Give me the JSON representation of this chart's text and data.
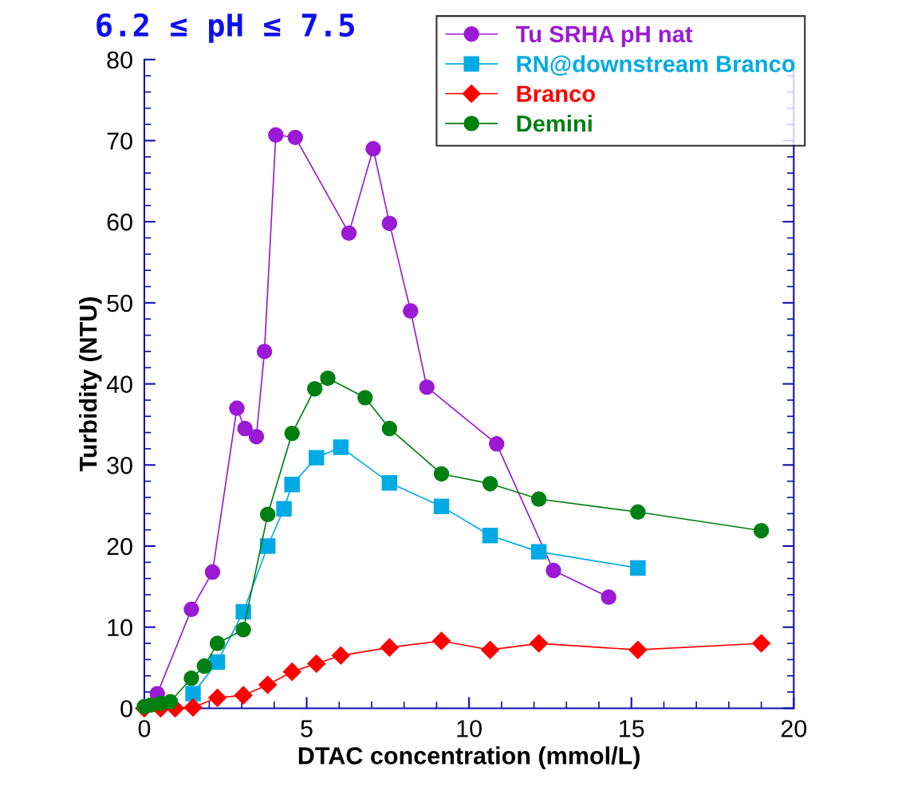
{
  "chart_data": {
    "type": "line",
    "title": "6.2 ≤ pH ≤ 7.5",
    "xlabel": "DTAC concentration (mmol/L)",
    "ylabel": "Turbidity (NTU)",
    "xlim": [
      0,
      20
    ],
    "xticks": [
      0,
      5,
      10,
      15,
      20
    ],
    "ylim": [
      0,
      80
    ],
    "yticks": [
      0,
      10,
      20,
      30,
      40,
      50,
      60,
      70,
      80
    ],
    "grid": false,
    "legend": "top right",
    "series": [
      {
        "name": "Tu SRHA pH nat",
        "color": "#9a1ad6",
        "marker": "circle",
        "x": [
          0.4,
          1.45,
          2.1,
          2.85,
          3.1,
          3.45,
          3.7,
          4.05,
          4.65,
          6.3,
          7.05,
          7.55,
          8.2,
          8.7,
          10.85,
          12.6,
          14.3
        ],
        "values": [
          1.8,
          12.2,
          16.8,
          37,
          34.5,
          33.5,
          44,
          70.7,
          70.4,
          58.6,
          69,
          59.8,
          49,
          39.6,
          32.6,
          17,
          13.7
        ]
      },
      {
        "name": "RN@downstream Branco",
        "color": "#00aae4",
        "marker": "square",
        "x": [
          1.5,
          2.25,
          3.05,
          3.8,
          4.3,
          4.55,
          5.3,
          6.05,
          7.55,
          9.15,
          10.65,
          12.15,
          15.2
        ],
        "values": [
          1.8,
          5.7,
          11.9,
          20,
          24.6,
          27.6,
          30.9,
          32.2,
          27.8,
          24.9,
          21.3,
          19.3,
          17.3
        ]
      },
      {
        "name": "Branco",
        "color": "#ff0000",
        "marker": "diamond",
        "x": [
          0,
          0.5,
          0.95,
          1.5,
          2.25,
          3.05,
          3.8,
          4.55,
          5.3,
          6.05,
          7.55,
          9.15,
          10.65,
          12.15,
          15.2,
          19
        ],
        "values": [
          0,
          0,
          0,
          0.1,
          1.3,
          1.6,
          2.9,
          4.5,
          5.5,
          6.5,
          7.5,
          8.3,
          7.2,
          8,
          7.2,
          8
        ]
      },
      {
        "name": "Demini",
        "color": "#007f12",
        "marker": "circle",
        "x": [
          0,
          0.2,
          0.5,
          0.8,
          1.45,
          1.85,
          2.25,
          3.05,
          3.8,
          4.55,
          5.25,
          5.65,
          6.8,
          7.55,
          9.15,
          10.65,
          12.15,
          15.2,
          19
        ],
        "values": [
          0.2,
          0.4,
          0.6,
          0.8,
          3.7,
          5.2,
          8,
          9.7,
          23.9,
          33.9,
          39.4,
          40.7,
          38.3,
          34.5,
          28.9,
          27.7,
          25.8,
          24.2,
          21.9
        ]
      }
    ]
  }
}
